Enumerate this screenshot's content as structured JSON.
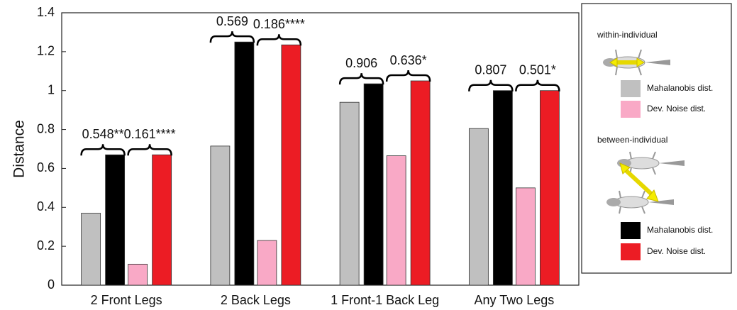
{
  "chart_data": {
    "type": "bar",
    "y_label": "Distance",
    "categories": [
      "2 Front Legs",
      "2 Back Legs",
      "1 Front-1 Back Leg",
      "Any Two Legs"
    ],
    "series": [
      {
        "name": "Mahalanobis dist.",
        "color": "#c0c0c0",
        "values": [
          0.37,
          0.715,
          0.94,
          0.805
        ]
      },
      {
        "name": "Mahalanobis dist.",
        "color": "#000000",
        "values": [
          0.67,
          1.25,
          1.035,
          1.0
        ]
      },
      {
        "name": "Dev. Noise dist.",
        "color": "#f9a9c6",
        "values": [
          0.108,
          0.23,
          0.665,
          0.5
        ]
      },
      {
        "name": "Dev. Noise dist.",
        "color": "#ec1c24",
        "values": [
          0.67,
          1.235,
          1.05,
          1.0
        ]
      }
    ],
    "annotations": [
      [
        "0.548**",
        "0.161****"
      ],
      [
        "0.569",
        "0.186****"
      ],
      [
        "0.906",
        "0.636*"
      ],
      [
        "0.807",
        "0.501*"
      ]
    ],
    "legend_titles": [
      "within-individual",
      "between-individual"
    ],
    "ylim": [
      0,
      1.4
    ],
    "yticks": [
      0,
      0.2,
      0.4,
      0.6,
      0.8,
      1,
      1.2,
      1.4
    ],
    "grid": false
  }
}
